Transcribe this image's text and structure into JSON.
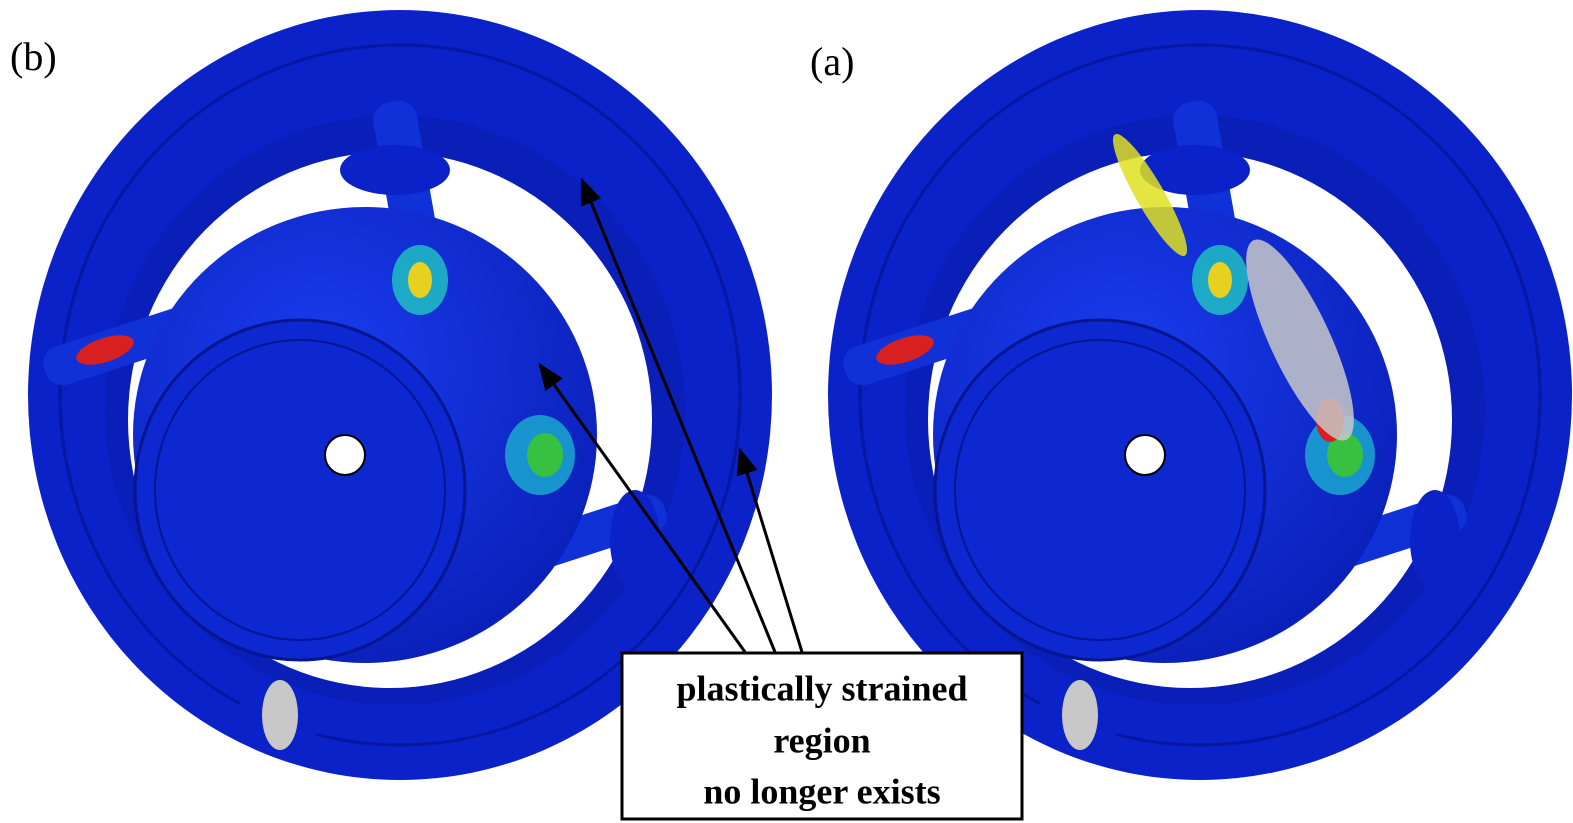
{
  "panels": [
    {
      "label": "(b)"
    },
    {
      "label": "(a)"
    }
  ],
  "annotation": {
    "lines": [
      "plastically strained",
      "region",
      "no longer exists"
    ]
  }
}
